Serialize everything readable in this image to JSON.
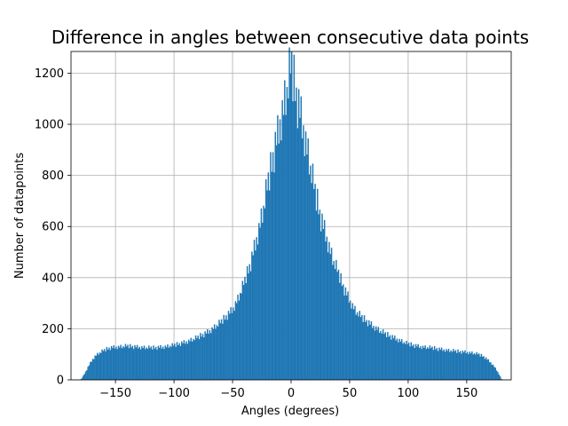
{
  "chart_data": {
    "type": "bar",
    "title": "Difference in angles between consecutive data points",
    "xlabel": "Angles (degrees)",
    "ylabel": "Number of datapoints",
    "xlim": [
      -188,
      188
    ],
    "ylim": [
      0,
      1285
    ],
    "xticks": [
      -150,
      -100,
      -50,
      0,
      50,
      100,
      150
    ],
    "xtick_labels": [
      "−150",
      "−100",
      "−50",
      "0",
      "50",
      "100",
      "150"
    ],
    "yticks": [
      0,
      200,
      400,
      600,
      800,
      1000,
      1200
    ],
    "ytick_labels": [
      "0",
      "200",
      "400",
      "600",
      "800",
      "1000",
      "1200"
    ],
    "grid": true,
    "bar_color": "#1f77b4",
    "bins": {
      "start": -180,
      "end": 180,
      "count": 360
    },
    "profile_points": [
      [
        -180,
        0
      ],
      [
        -178,
        12
      ],
      [
        -176,
        28
      ],
      [
        -174,
        45
      ],
      [
        -172,
        62
      ],
      [
        -170,
        78
      ],
      [
        -167,
        95
      ],
      [
        -164,
        105
      ],
      [
        -160,
        115
      ],
      [
        -155,
        125
      ],
      [
        -150,
        128
      ],
      [
        -145,
        130
      ],
      [
        -140,
        132
      ],
      [
        -130,
        128
      ],
      [
        -120,
        125
      ],
      [
        -110,
        128
      ],
      [
        -100,
        135
      ],
      [
        -90,
        148
      ],
      [
        -80,
        165
      ],
      [
        -70,
        190
      ],
      [
        -60,
        225
      ],
      [
        -50,
        275
      ],
      [
        -45,
        320
      ],
      [
        -40,
        380
      ],
      [
        -35,
        450
      ],
      [
        -30,
        540
      ],
      [
        -25,
        640
      ],
      [
        -20,
        760
      ],
      [
        -15,
        880
      ],
      [
        -10,
        990
      ],
      [
        -5,
        1100
      ],
      [
        -2,
        1170
      ],
      [
        0,
        1225
      ],
      [
        2,
        1170
      ],
      [
        5,
        1100
      ],
      [
        10,
        990
      ],
      [
        15,
        870
      ],
      [
        20,
        740
      ],
      [
        25,
        640
      ],
      [
        30,
        560
      ],
      [
        35,
        480
      ],
      [
        40,
        420
      ],
      [
        45,
        360
      ],
      [
        50,
        310
      ],
      [
        55,
        270
      ],
      [
        60,
        245
      ],
      [
        70,
        210
      ],
      [
        80,
        180
      ],
      [
        90,
        160
      ],
      [
        100,
        140
      ],
      [
        110,
        130
      ],
      [
        120,
        125
      ],
      [
        130,
        118
      ],
      [
        140,
        112
      ],
      [
        150,
        108
      ],
      [
        155,
        105
      ],
      [
        160,
        100
      ],
      [
        165,
        90
      ],
      [
        170,
        70
      ],
      [
        173,
        55
      ],
      [
        176,
        35
      ],
      [
        178,
        18
      ],
      [
        180,
        0
      ]
    ],
    "jitter": [
      0.06,
      -0.08,
      0.1,
      -0.04,
      0.03,
      -0.1,
      0.07,
      -0.02,
      0.09,
      -0.06,
      0.02,
      -0.09,
      0.05,
      -0.03,
      0.08,
      -0.07,
      0.01,
      -0.05,
      0.1,
      -0.01
    ]
  }
}
